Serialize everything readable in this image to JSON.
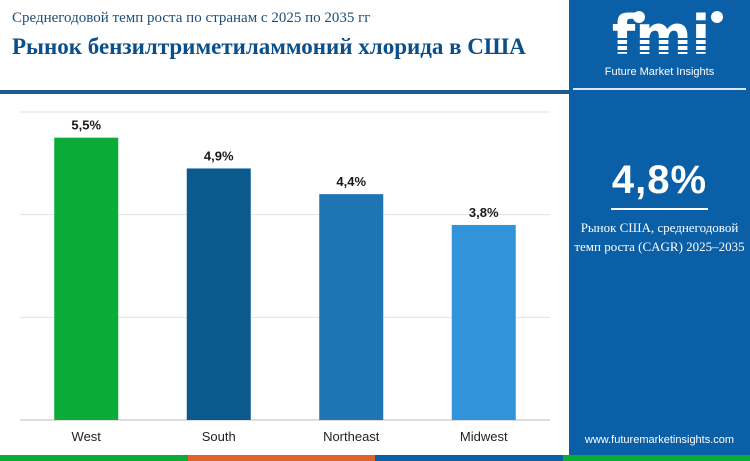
{
  "header": {
    "subtitle": "Среднегодовой темп роста по странам с 2025 по 2035 гг",
    "title": "Рынок бензилтриметиламмоний хлорида в США"
  },
  "chart_data": {
    "type": "bar",
    "categories": [
      "West",
      "South",
      "Northeast",
      "Midwest"
    ],
    "values": [
      5.5,
      4.9,
      4.4,
      3.8
    ],
    "value_labels": [
      "5,5%",
      "4,9%",
      "4,4%",
      "3,8%"
    ],
    "colors": [
      "#0aac37",
      "#0b5a8e",
      "#1f74b4",
      "#3193d9"
    ],
    "ylim": [
      0,
      6
    ],
    "grid": true,
    "legend": "none"
  },
  "side": {
    "brand": "fmi",
    "brand_caption": "Future Market Insights",
    "cagr_value": "4,8%",
    "cagr_description": "Рынок США, среднегодовой темп роста (CAGR) 2025–2035",
    "website": "www.futuremarketinsights.com"
  },
  "strip_colors": [
    "#0aac37",
    "#e0622a",
    "#0b5fa6",
    "#0aac37"
  ]
}
